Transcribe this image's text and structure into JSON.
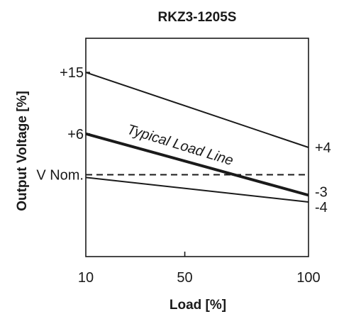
{
  "chart_data": {
    "type": "line",
    "title": "RKZ3-1205S",
    "xlabel": "Load [%]",
    "ylabel": "Output Voltage [%]",
    "x_ticks": [
      "10",
      "50",
      "100"
    ],
    "xlim": [
      10,
      100
    ],
    "ylim": [
      -12,
      20
    ],
    "left_labels": [
      {
        "text": "+15",
        "y": 15
      },
      {
        "text": "+6",
        "y": 6
      },
      {
        "text": "V Nom.",
        "y": 0
      }
    ],
    "right_labels": [
      {
        "text": "+4",
        "y": 4
      },
      {
        "text": "-3",
        "y": -3
      },
      {
        "text": "-4",
        "y": -4
      }
    ],
    "series": [
      {
        "name": "",
        "x": [
          10,
          100
        ],
        "y": [
          15,
          4
        ],
        "style": "thin"
      },
      {
        "name": "Typical Load Line",
        "x": [
          10,
          100
        ],
        "y": [
          6,
          -3
        ],
        "style": "thick"
      },
      {
        "name": "",
        "x": [
          10,
          100
        ],
        "y": [
          -0.4,
          -4
        ],
        "style": "thin"
      },
      {
        "name": "",
        "x": [
          10,
          100
        ],
        "y": [
          0,
          0
        ],
        "style": "dashed"
      }
    ],
    "annotation": "Typical Load Line",
    "grid": false,
    "line_color": "#1a1a1a"
  }
}
